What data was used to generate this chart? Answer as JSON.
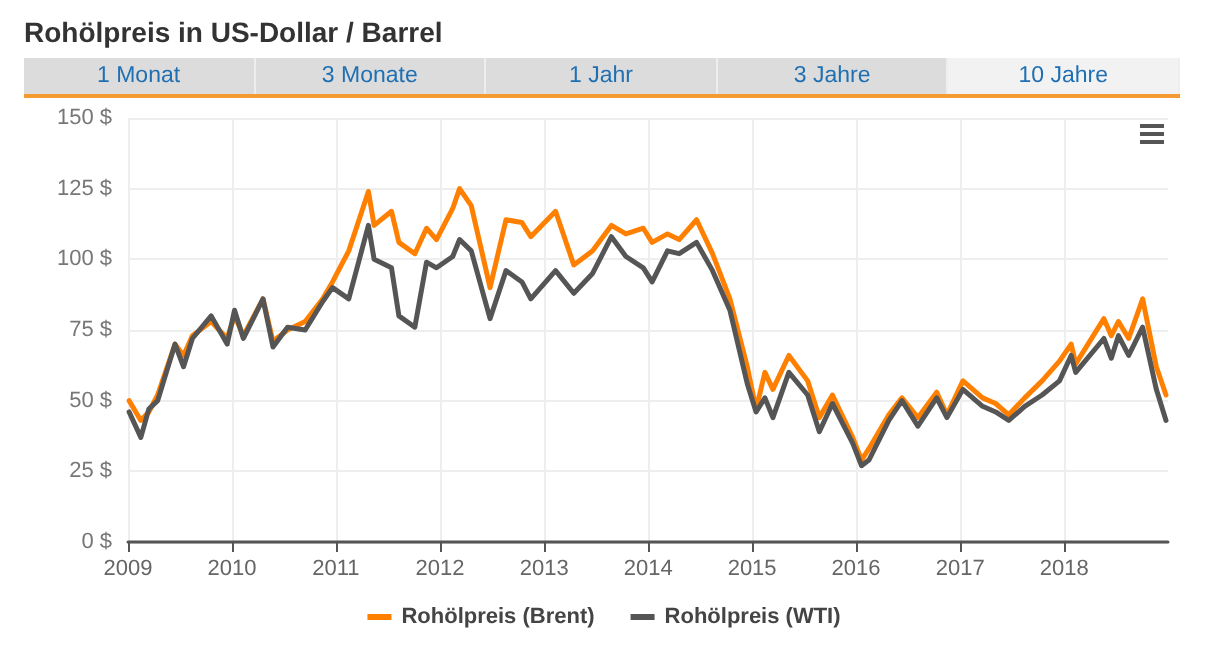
{
  "chart_data": {
    "type": "line",
    "title": "Rohölpreis in US-Dollar / Barrel",
    "annotations": [
      "1 Monat",
      "3 Monate",
      "1 Jahr",
      "3 Jahre",
      "10 Jahre"
    ],
    "x": [
      "2009-01-05",
      "2009-02-15",
      "2009-03-15",
      "2009-04-15",
      "2009-06-15",
      "2009-07-15",
      "2009-08-15",
      "2009-10-20",
      "2009-12-15",
      "2010-01-10",
      "2010-02-10",
      "2010-04-20",
      "2010-05-25",
      "2010-07-15",
      "2010-09-15",
      "2010-11-15",
      "2010-12-20",
      "2011-02-15",
      "2011-04-25",
      "2011-05-15",
      "2011-07-15",
      "2011-08-10",
      "2011-10-05",
      "2011-11-15",
      "2011-12-20",
      "2012-02-15",
      "2012-03-10",
      "2012-04-20",
      "2012-06-25",
      "2012-08-20",
      "2012-10-15",
      "2012-11-15",
      "2013-02-10",
      "2013-04-15",
      "2013-06-20",
      "2013-08-25",
      "2013-10-15",
      "2013-12-15",
      "2014-01-15",
      "2014-03-10",
      "2014-04-20",
      "2014-06-20",
      "2014-08-15",
      "2014-10-15",
      "2014-12-15",
      "2015-01-15",
      "2015-02-15",
      "2015-03-15",
      "2015-05-10",
      "2015-07-15",
      "2015-08-25",
      "2015-10-10",
      "2015-12-20",
      "2016-01-20",
      "2016-02-15",
      "2016-04-25",
      "2016-06-10",
      "2016-08-05",
      "2016-10-10",
      "2016-11-15",
      "2017-01-10",
      "2017-03-20",
      "2017-05-05",
      "2017-06-20",
      "2017-08-15",
      "2017-10-15",
      "2017-12-15",
      "2018-01-25",
      "2018-02-10",
      "2018-05-20",
      "2018-06-15",
      "2018-07-10",
      "2018-08-15",
      "2018-10-03",
      "2018-11-20",
      "2018-12-24"
    ],
    "series": [
      {
        "name": "Rohölpreis (Brent)",
        "color": "#ff8000",
        "values": [
          50,
          43,
          46,
          52,
          70,
          66,
          73,
          78,
          72,
          80,
          73,
          86,
          71,
          75,
          78,
          86,
          92,
          103,
          124,
          112,
          117,
          106,
          102,
          111,
          107,
          118,
          125,
          119,
          90,
          114,
          113,
          108,
          117,
          98,
          103,
          112,
          109,
          111,
          106,
          109,
          107,
          114,
          102,
          86,
          62,
          47,
          60,
          54,
          66,
          57,
          44,
          52,
          37,
          29,
          33,
          45,
          51,
          44,
          53,
          45,
          57,
          51,
          49,
          45,
          51,
          57,
          64,
          70,
          63,
          79,
          73,
          78,
          72,
          86,
          62,
          52
        ]
      },
      {
        "name": "Rohölpreis (WTI)",
        "color": "#555555",
        "values": [
          46,
          37,
          47,
          50,
          70,
          62,
          72,
          80,
          70,
          82,
          72,
          86,
          69,
          76,
          75,
          85,
          90,
          86,
          112,
          100,
          97,
          80,
          76,
          99,
          97,
          101,
          107,
          103,
          79,
          96,
          92,
          86,
          96,
          88,
          95,
          108,
          101,
          97,
          92,
          103,
          102,
          106,
          96,
          82,
          56,
          46,
          51,
          44,
          60,
          52,
          39,
          49,
          35,
          27,
          29,
          43,
          50,
          41,
          51,
          44,
          54,
          48,
          46,
          43,
          48,
          52,
          57,
          66,
          60,
          72,
          65,
          73,
          66,
          76,
          54,
          43
        ]
      }
    ],
    "xlim": [
      "2009-01-01",
      "2018-12-31"
    ],
    "xticks": [
      "2009",
      "2010",
      "2011",
      "2012",
      "2013",
      "2014",
      "2015",
      "2016",
      "2017",
      "2018"
    ],
    "ylim": [
      0,
      150
    ],
    "yticks": [
      {
        "value": 0,
        "label": "0 $"
      },
      {
        "value": 25,
        "label": "25 $"
      },
      {
        "value": 50,
        "label": "50 $"
      },
      {
        "value": 75,
        "label": "75 $"
      },
      {
        "value": 100,
        "label": "100 $"
      },
      {
        "value": 125,
        "label": "125 $"
      },
      {
        "value": 150,
        "label": "150 $"
      }
    ],
    "grid": true,
    "legend": "bottom",
    "marker": "none",
    "line_style": "solid"
  }
}
